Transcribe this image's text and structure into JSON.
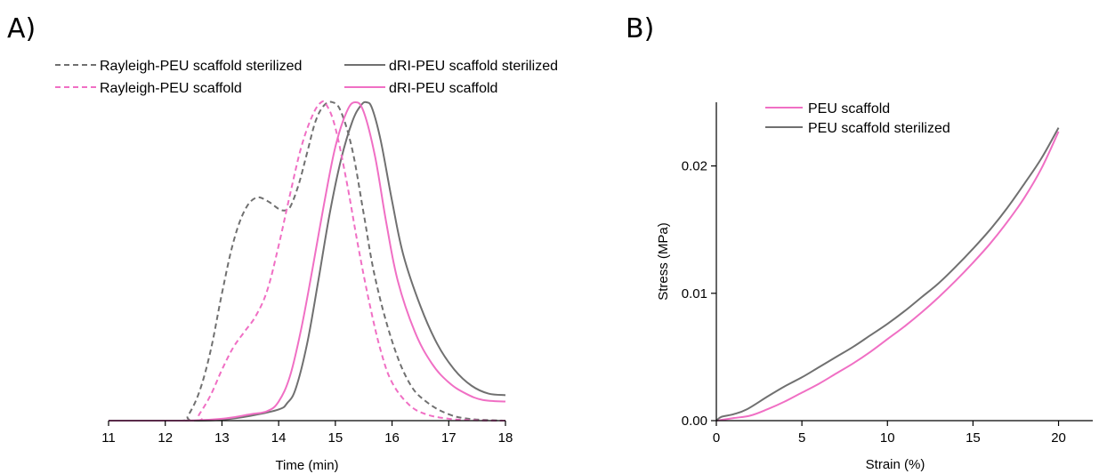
{
  "chart_data": [
    {
      "panel": "A)",
      "type": "line",
      "xlabel": "Time (min)",
      "ylabel": "",
      "xlim": [
        11,
        18
      ],
      "ylim": [
        0,
        1.0
      ],
      "yaxis_shown": false,
      "xticks": [
        "11",
        "12",
        "13",
        "14",
        "15",
        "16",
        "17",
        "18"
      ],
      "legend_placement": "top, two columns",
      "series": [
        {
          "name": "Rayleigh-PEU scaffold sterilized",
          "color": "#707070",
          "dash": true,
          "x": [
            11,
            12.3,
            12.4,
            12.6,
            12.8,
            13.0,
            13.2,
            13.4,
            13.6,
            13.8,
            14.0,
            14.1,
            14.2,
            14.35,
            14.5,
            14.65,
            14.8,
            14.95,
            15.1,
            15.3,
            15.5,
            15.7,
            16.0,
            16.3,
            16.6,
            17.0,
            17.4,
            18
          ],
          "y": [
            0,
            0,
            0.015,
            0.09,
            0.22,
            0.4,
            0.56,
            0.66,
            0.7,
            0.69,
            0.665,
            0.66,
            0.67,
            0.74,
            0.84,
            0.94,
            0.99,
            1.0,
            0.97,
            0.85,
            0.65,
            0.45,
            0.25,
            0.12,
            0.06,
            0.02,
            0.005,
            0
          ]
        },
        {
          "name": "dRI-PEU scaffold sterilized",
          "color": "#707070",
          "dash": false,
          "x": [
            11,
            12.5,
            13.0,
            13.5,
            14.0,
            14.15,
            14.3,
            14.5,
            14.7,
            14.9,
            15.1,
            15.3,
            15.45,
            15.55,
            15.65,
            15.8,
            16.0,
            16.2,
            16.5,
            16.8,
            17.1,
            17.4,
            17.7,
            18
          ],
          "y": [
            0,
            0,
            0.003,
            0.015,
            0.035,
            0.055,
            0.1,
            0.24,
            0.44,
            0.65,
            0.82,
            0.94,
            0.99,
            1.0,
            0.98,
            0.88,
            0.69,
            0.52,
            0.36,
            0.24,
            0.16,
            0.11,
            0.085,
            0.08
          ]
        },
        {
          "name": "Rayleigh-PEU scaffold",
          "color": "#f06fc4",
          "dash": true,
          "x": [
            11,
            12.5,
            12.6,
            12.8,
            13.0,
            13.2,
            13.4,
            13.6,
            13.8,
            14.0,
            14.2,
            14.4,
            14.6,
            14.75,
            14.85,
            15.0,
            15.2,
            15.4,
            15.6,
            15.8,
            16.0,
            16.3,
            16.6,
            17.0,
            17.5,
            18
          ],
          "y": [
            0,
            0,
            0.02,
            0.08,
            0.16,
            0.23,
            0.28,
            0.33,
            0.41,
            0.55,
            0.71,
            0.86,
            0.96,
            1.0,
            0.99,
            0.92,
            0.75,
            0.55,
            0.37,
            0.22,
            0.12,
            0.05,
            0.02,
            0.006,
            0.001,
            0
          ]
        },
        {
          "name": "dRI-PEU scaffold",
          "color": "#f06fc4",
          "dash": false,
          "x": [
            11,
            12.3,
            13.0,
            13.5,
            13.8,
            14.0,
            14.2,
            14.4,
            14.6,
            14.8,
            15.0,
            15.2,
            15.35,
            15.5,
            15.7,
            15.9,
            16.1,
            16.4,
            16.7,
            17.0,
            17.3,
            17.6,
            18
          ],
          "y": [
            0,
            0,
            0.006,
            0.02,
            0.03,
            0.06,
            0.14,
            0.29,
            0.48,
            0.68,
            0.86,
            0.97,
            1.0,
            0.97,
            0.83,
            0.62,
            0.44,
            0.28,
            0.18,
            0.12,
            0.085,
            0.065,
            0.06
          ]
        }
      ]
    },
    {
      "panel": "B)",
      "type": "line",
      "xlabel": "Strain (%)",
      "ylabel": "Stress (MPa)",
      "xlim": [
        0,
        22
      ],
      "ylim": [
        0,
        0.025
      ],
      "xticks": [
        "0",
        "5",
        "10",
        "15",
        "20"
      ],
      "yticks": [
        "0.00",
        "0.01",
        "0.02"
      ],
      "legend_placement": "top-left",
      "series": [
        {
          "name": "PEU scaffold",
          "color": "#f06fc4",
          "dash": false,
          "x": [
            0,
            1,
            2,
            3,
            4,
            5,
            6,
            7,
            8,
            9,
            10,
            11,
            12,
            13,
            14,
            15,
            16,
            17,
            18,
            19,
            20
          ],
          "y": [
            0,
            0.0002,
            0.0004,
            0.0009,
            0.0015,
            0.0022,
            0.0029,
            0.0037,
            0.0045,
            0.0054,
            0.0064,
            0.0074,
            0.0085,
            0.0097,
            0.011,
            0.0124,
            0.0139,
            0.0156,
            0.0175,
            0.0198,
            0.0227
          ]
        },
        {
          "name": "PEU scaffold sterilized",
          "color": "#707070",
          "dash": false,
          "x": [
            0,
            0.3,
            1,
            1.8,
            3,
            4,
            5,
            6,
            7,
            8,
            9,
            10,
            11,
            12,
            13,
            14,
            15,
            16,
            17,
            18,
            19,
            20
          ],
          "y": [
            0,
            0.0003,
            0.0005,
            0.0009,
            0.0019,
            0.0027,
            0.0034,
            0.0042,
            0.005,
            0.0058,
            0.0067,
            0.0076,
            0.0086,
            0.0097,
            0.0108,
            0.0121,
            0.0135,
            0.015,
            0.0167,
            0.0186,
            0.0206,
            0.023
          ]
        }
      ]
    }
  ]
}
